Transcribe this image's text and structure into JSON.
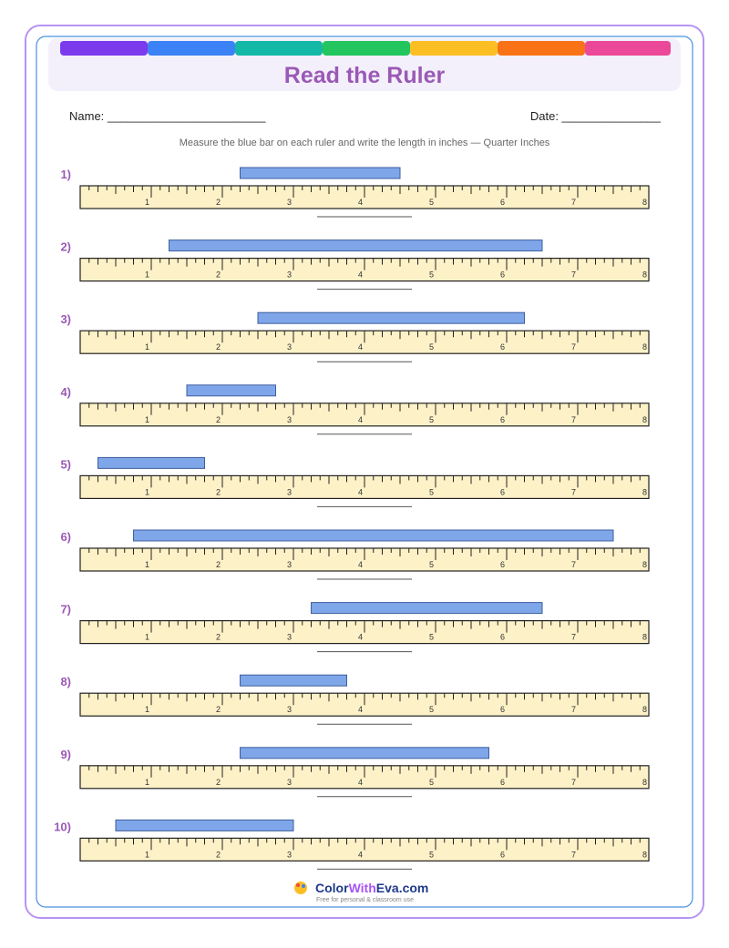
{
  "header": {
    "title": "Read the Ruler"
  },
  "fields": {
    "name": "Name: ________________________",
    "date": "Date: _______________"
  },
  "instructions": "Measure the blue bar on each ruler and write the length in inches — Quarter Inches",
  "ruler": {
    "labels": [
      1,
      2,
      3,
      4,
      5,
      6,
      7,
      8
    ]
  },
  "problems": [
    {
      "label": "1)",
      "start": 2.25,
      "end": 4.5
    },
    {
      "label": "2)",
      "start": 1.25,
      "end": 6.5
    },
    {
      "label": "3)",
      "start": 2.5,
      "end": 6.25
    },
    {
      "label": "4)",
      "start": 1.5,
      "end": 2.75
    },
    {
      "label": "5)",
      "start": 0.25,
      "end": 1.75
    },
    {
      "label": "6)",
      "start": 0.75,
      "end": 7.5
    },
    {
      "label": "7)",
      "start": 3.25,
      "end": 6.5
    },
    {
      "label": "8)",
      "start": 2.25,
      "end": 3.75
    },
    {
      "label": "9)",
      "start": 2.25,
      "end": 5.75
    },
    {
      "label": "10)",
      "start": 0.5,
      "end": 3.0
    }
  ],
  "footer": {
    "brand_color": "Color",
    "brand_with": "With",
    "brand_eva": "Eva",
    "brand_com": ".com",
    "tagline": "Free for personal & classroom use"
  }
}
